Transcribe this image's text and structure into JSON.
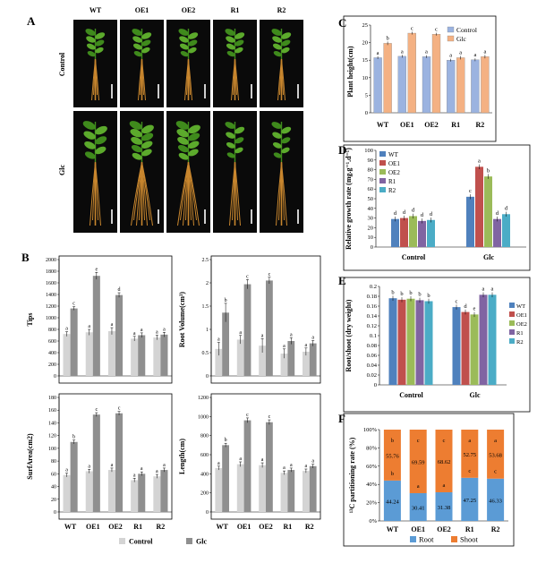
{
  "panels": {
    "A": "A",
    "B": "B",
    "C": "C",
    "D": "D",
    "E": "E",
    "F": "F"
  },
  "genotypes": [
    "WT",
    "OE1",
    "OE2",
    "R1",
    "R2"
  ],
  "conditions": [
    "Control",
    "Glc"
  ],
  "colors": {
    "photo_bg": "#0a0a0a",
    "leaf": "#5caa2c",
    "leaf_dark": "#3f8a1c",
    "root": "#c8862e",
    "gray_light": "#d4d4d4",
    "gray_dark": "#8f8f8f",
    "c_control": "#9bb3e0",
    "c_glc": "#f4b183",
    "wt": "#4f81bd",
    "oe1": "#c0504d",
    "oe2": "#9bbb59",
    "r1": "#8064a2",
    "r2": "#4bacc6",
    "root_blue": "#5b9bd5",
    "shoot_orange": "#ed7d31"
  },
  "panel_b": {
    "legend": [
      "Control",
      "Glc"
    ],
    "xcats": [
      "WT",
      "OE1",
      "OE2",
      "R1",
      "R2"
    ],
    "charts": [
      {
        "ylabel": "Tips",
        "ylim": [
          0,
          2000
        ],
        "ticks": [
          "0",
          "200",
          "400",
          "600",
          "800",
          "1000",
          "1200",
          "1400",
          "1600",
          "1800",
          "2000"
        ],
        "control": [
          720,
          750,
          770,
          640,
          660
        ],
        "glc": [
          1160,
          1720,
          1390,
          700,
          710
        ],
        "err_c": [
          40,
          50,
          60,
          40,
          40
        ],
        "err_g": [
          30,
          60,
          40,
          40,
          40
        ],
        "let_c": [
          "a",
          "a",
          "a",
          "a",
          "a"
        ],
        "let_g": [
          "c",
          "e",
          "d",
          "a",
          "a"
        ]
      },
      {
        "ylabel": "Root Volume(cm³)",
        "ylim": [
          0,
          2.5
        ],
        "ticks": [
          "0",
          "0.5",
          "1",
          "1.5",
          "2",
          "2.5"
        ],
        "control": [
          0.58,
          0.78,
          0.65,
          0.48,
          0.52
        ],
        "glc": [
          1.36,
          1.97,
          2.05,
          0.75,
          0.7
        ],
        "err_c": [
          0.14,
          0.09,
          0.15,
          0.1,
          0.08
        ],
        "err_g": [
          0.2,
          0.1,
          0.07,
          0.07,
          0.06
        ],
        "let_c": [
          "a",
          "a",
          "a",
          "a",
          "a"
        ],
        "let_g": [
          "b",
          "c",
          "c",
          "a",
          "a"
        ]
      },
      {
        "ylabel": "SurfArea(cm2)",
        "ylim": [
          0,
          180
        ],
        "ticks": [
          "0",
          "20",
          "40",
          "60",
          "80",
          "100",
          "120",
          "140",
          "160",
          "180"
        ],
        "control": [
          58,
          64,
          66,
          50,
          56
        ],
        "glc": [
          110,
          153,
          155,
          60,
          66
        ],
        "err_c": [
          3,
          3,
          3,
          3,
          3
        ],
        "err_g": [
          3,
          3,
          3,
          3,
          3
        ],
        "let_c": [
          "a",
          "a",
          "a",
          "a",
          "a"
        ],
        "let_g": [
          "b",
          "c",
          "c",
          "a",
          "a"
        ]
      },
      {
        "ylabel": "Length(cm)",
        "ylim": [
          0,
          1200
        ],
        "ticks": [
          "0",
          "200",
          "400",
          "600",
          "800",
          "1000",
          "1200"
        ],
        "control": [
          460,
          500,
          490,
          410,
          430
        ],
        "glc": [
          700,
          960,
          940,
          440,
          480
        ],
        "err_c": [
          20,
          25,
          25,
          20,
          20
        ],
        "err_g": [
          20,
          25,
          25,
          20,
          20
        ],
        "let_c": [
          "a",
          "a",
          "a",
          "a",
          "a"
        ],
        "let_g": [
          "b",
          "c",
          "c",
          "a",
          "a"
        ]
      }
    ]
  },
  "chart_data": [
    {
      "type": "bar",
      "title": "Plant height",
      "ylabel": "Plant height(cm)",
      "ylim": [
        0,
        25
      ],
      "ticks": [
        "0",
        "5",
        "10",
        "15",
        "20",
        "25"
      ],
      "categories": [
        "WT",
        "OE1",
        "OE2",
        "R1",
        "R2"
      ],
      "series": [
        {
          "name": "Control",
          "values": [
            15.7,
            16.1,
            16.0,
            15.0,
            15.1
          ],
          "errors": [
            0.4,
            0.4,
            0.4,
            0.4,
            0.4
          ],
          "letters": [
            "a",
            "a",
            "a",
            "a",
            "a"
          ]
        },
        {
          "name": "Glc",
          "values": [
            19.8,
            22.7,
            22.4,
            15.7,
            16.0
          ],
          "errors": [
            0.5,
            0.4,
            0.4,
            0.5,
            0.5
          ],
          "letters": [
            "b",
            "c",
            "c",
            "a",
            "a"
          ]
        }
      ]
    },
    {
      "type": "bar",
      "title": "Relative growth rate",
      "ylabel": "Relative growth rate (mg.g⁻¹.d⁻¹)",
      "ylim": [
        0,
        100
      ],
      "ticks": [
        "0",
        "10",
        "20",
        "30",
        "40",
        "50",
        "60",
        "70",
        "80",
        "90",
        "100"
      ],
      "categories": [
        "Control",
        "Glc"
      ],
      "series": [
        {
          "name": "WT",
          "values": [
            29,
            52
          ],
          "letters": [
            "d",
            "c"
          ]
        },
        {
          "name": "OE1",
          "values": [
            30,
            83
          ],
          "letters": [
            "d",
            "a"
          ]
        },
        {
          "name": "OE2",
          "values": [
            32,
            73
          ],
          "letters": [
            "d",
            "b"
          ]
        },
        {
          "name": "R1",
          "values": [
            27,
            29
          ],
          "letters": [
            "d",
            "d"
          ]
        },
        {
          "name": "R2",
          "values": [
            28,
            34
          ],
          "letters": [
            "d",
            "d"
          ]
        }
      ]
    },
    {
      "type": "bar",
      "title": "Root/shoot ratio",
      "ylabel": "Root/shoot (dry weight)",
      "ylim": [
        0,
        0.2
      ],
      "ticks": [
        "0",
        "0.02",
        "0.04",
        "0.06",
        "0.08",
        "0.1",
        "0.12",
        "0.14",
        "0.16",
        "0.18",
        "0.2"
      ],
      "categories": [
        "Control",
        "Glc"
      ],
      "series": [
        {
          "name": "WT",
          "values": [
            0.176,
            0.158
          ],
          "letters": [
            "b",
            "c"
          ]
        },
        {
          "name": "OE1",
          "values": [
            0.173,
            0.148
          ],
          "letters": [
            "b",
            "d"
          ]
        },
        {
          "name": "OE2",
          "values": [
            0.175,
            0.143
          ],
          "letters": [
            "b",
            "e"
          ]
        },
        {
          "name": "R1",
          "values": [
            0.172,
            0.183
          ],
          "letters": [
            "b",
            "a"
          ]
        },
        {
          "name": "R2",
          "values": [
            0.17,
            0.183
          ],
          "letters": [
            "b",
            "a"
          ]
        }
      ]
    },
    {
      "type": "bar",
      "title": "13C partitioning",
      "ylabel": "¹³C partitioning rate (%)",
      "ylim": [
        0,
        100
      ],
      "ticks": [
        "0%",
        "20%",
        "40%",
        "60%",
        "80%",
        "100%"
      ],
      "categories": [
        "WT",
        "OE1",
        "OE2",
        "R1",
        "R2"
      ],
      "series": [
        {
          "name": "Root",
          "values": [
            44.24,
            30.41,
            31.38,
            47.25,
            46.33
          ],
          "letters": [
            "b",
            "a",
            "a",
            "c",
            "c"
          ]
        },
        {
          "name": "Shoot",
          "values": [
            55.76,
            69.59,
            68.62,
            52.75,
            53.68
          ],
          "letters": [
            "b",
            "c",
            "c",
            "a",
            "a"
          ]
        }
      ]
    }
  ]
}
